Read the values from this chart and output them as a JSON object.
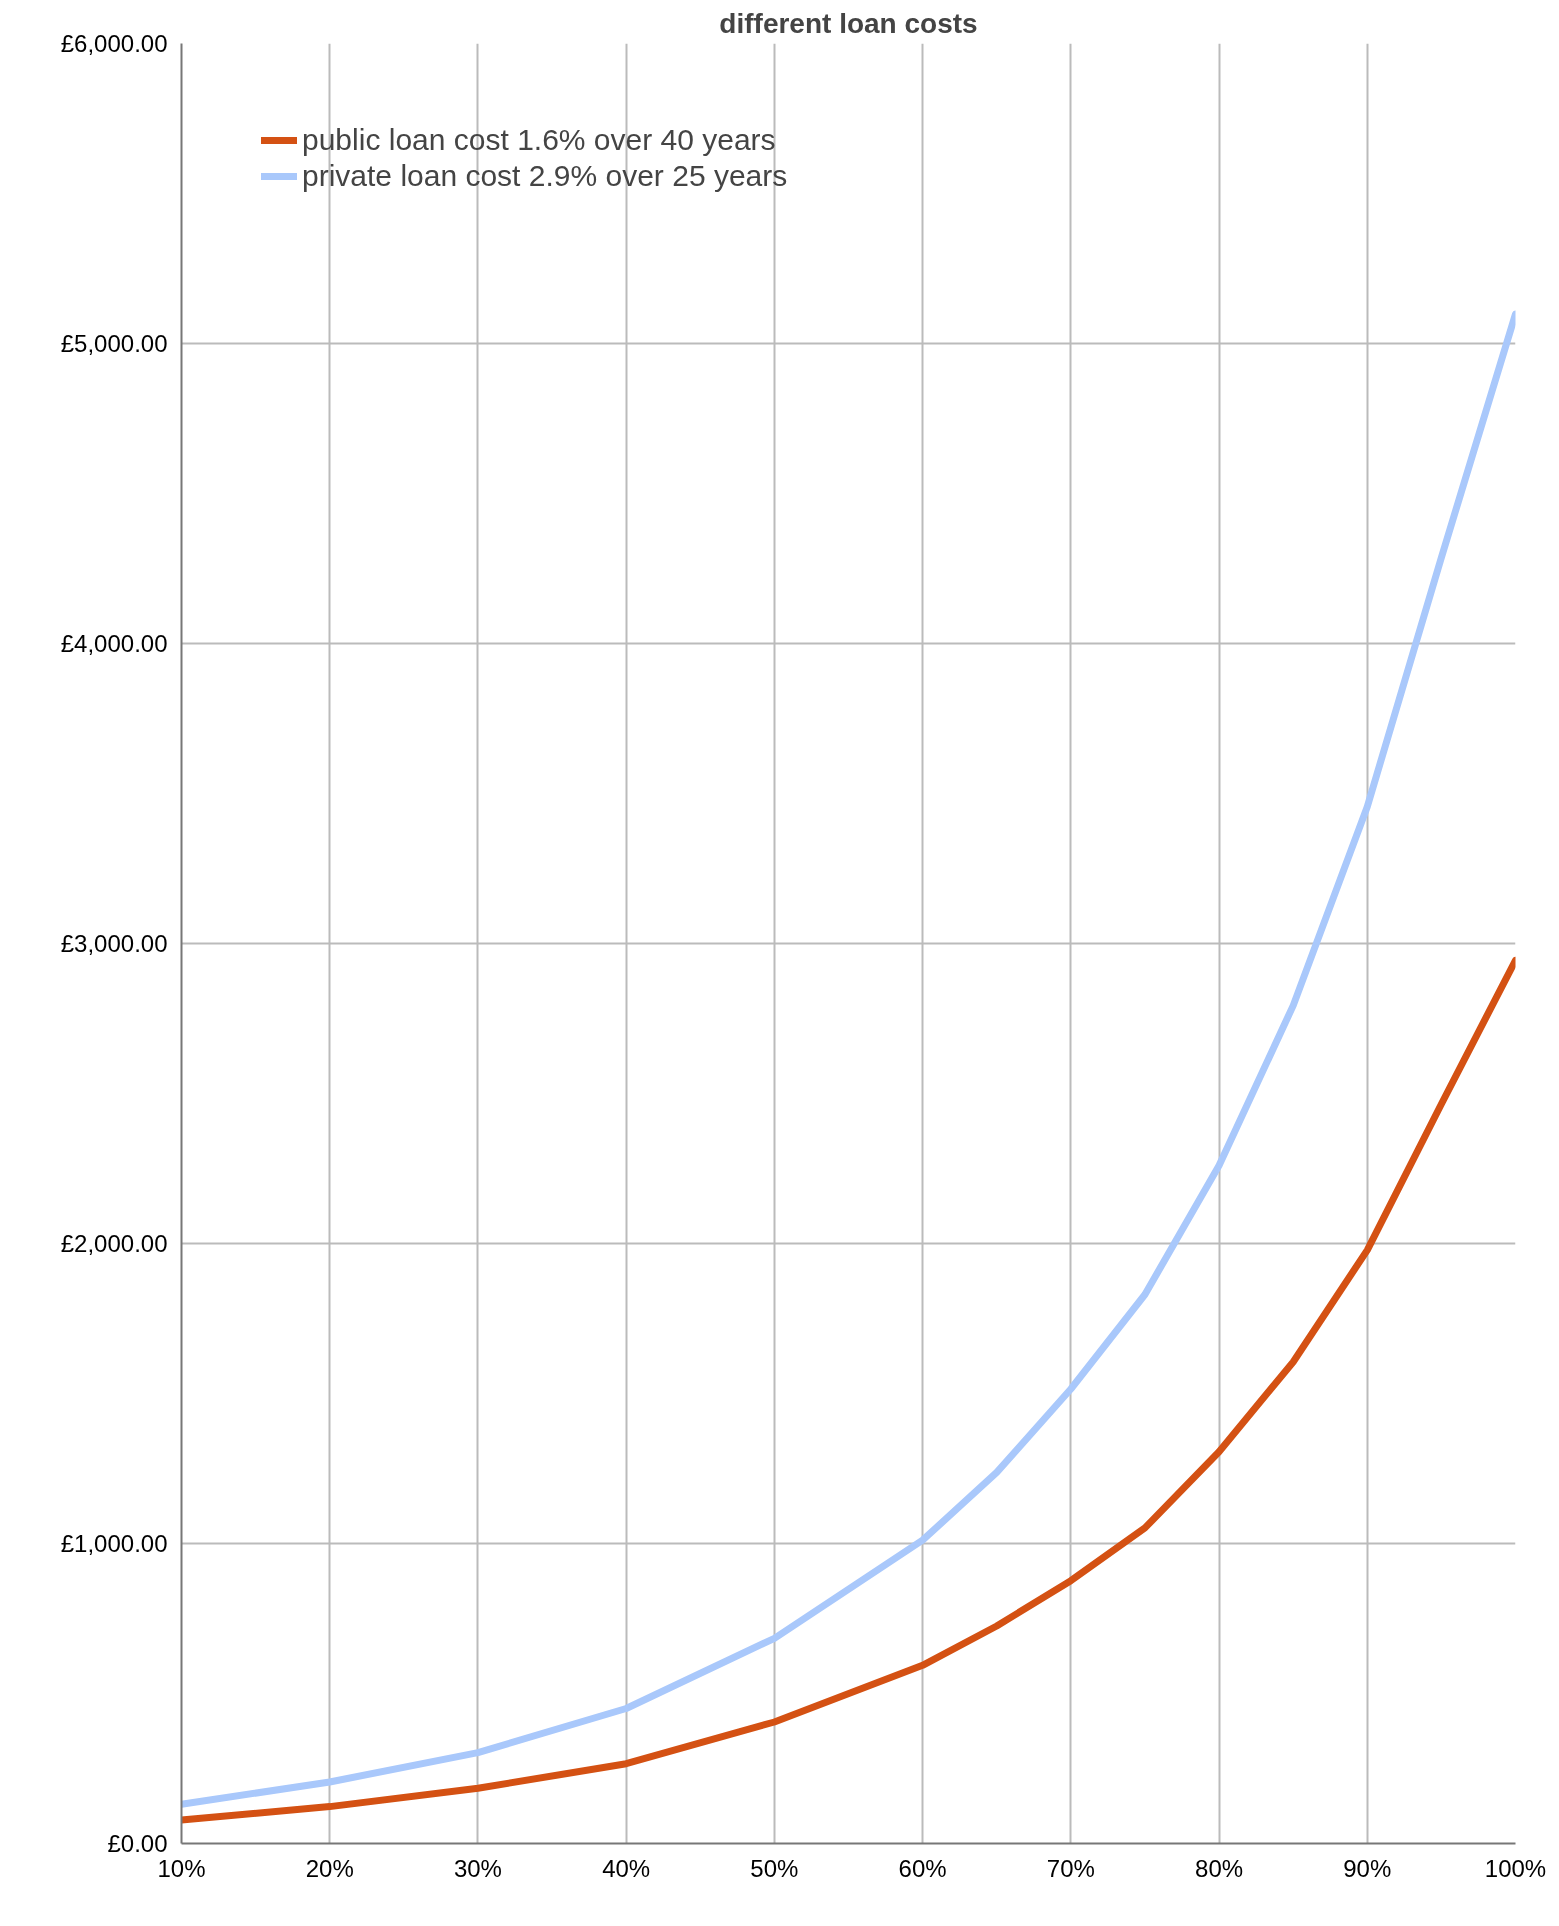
{
  "chart_data": {
    "type": "line",
    "title": "different loan costs",
    "x": [
      10,
      20,
      30,
      40,
      50,
      60,
      65,
      70,
      75,
      80,
      85,
      90,
      95,
      100
    ],
    "series": [
      {
        "name": "public loan cost 1.6% over 40 years",
        "color": "#d45113",
        "values": [
          78,
          123,
          184,
          266,
          405,
          594,
          725,
          876,
          1052,
          1306,
          1605,
          1978,
          2465,
          2944
        ]
      },
      {
        "name": "private loan cost 2.9% over 25 years",
        "color": "#a9c8fb",
        "values": [
          131,
          205,
          303,
          450,
          684,
          1011,
          1237,
          1515,
          1830,
          2260,
          2793,
          3456,
          4287,
          5098
        ]
      }
    ],
    "xlim": [
      10,
      100
    ],
    "ylim": [
      0,
      6000
    ],
    "xticks": [
      {
        "value": 10,
        "label": "10%"
      },
      {
        "value": 20,
        "label": "20%"
      },
      {
        "value": 30,
        "label": "30%"
      },
      {
        "value": 40,
        "label": "40%"
      },
      {
        "value": 50,
        "label": "50%"
      },
      {
        "value": 60,
        "label": "60%"
      },
      {
        "value": 70,
        "label": "70%"
      },
      {
        "value": 80,
        "label": "80%"
      },
      {
        "value": 90,
        "label": "90%"
      },
      {
        "value": 100,
        "label": "100%"
      }
    ],
    "yticks": [
      {
        "value": 0,
        "label": "£0.00"
      },
      {
        "value": 1000,
        "label": "£1,000.00"
      },
      {
        "value": 2000,
        "label": "£2,000.00"
      },
      {
        "value": 3000,
        "label": "£3,000.00"
      },
      {
        "value": 4000,
        "label": "£4,000.00"
      },
      {
        "value": 5000,
        "label": "£5,000.00"
      },
      {
        "value": 6000,
        "label": "£6,000.00"
      }
    ],
    "grid": true,
    "legend": "top left",
    "marker": "none",
    "line_style": "solid"
  }
}
